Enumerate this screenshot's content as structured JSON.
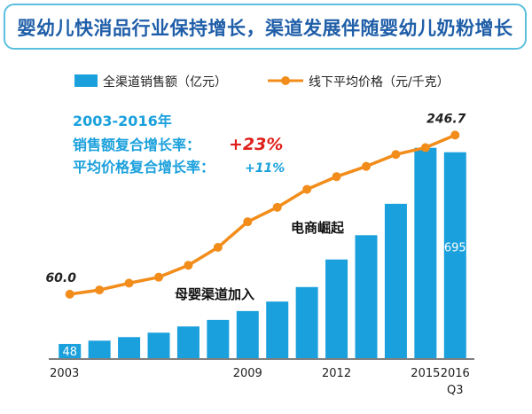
{
  "title": "婴幼儿快消品行业保持增长，渠道发展伴随婴幼儿奶粉增长",
  "chart_data": {
    "type": "bar+line",
    "categories": [
      "2003",
      "2004",
      "2005",
      "2006",
      "2007",
      "2008",
      "2009",
      "2010",
      "2011",
      "2012",
      "2013",
      "2014",
      "2015",
      "2016 Q3"
    ],
    "x_tick_labels": [
      {
        "index": 0,
        "text": "2003"
      },
      {
        "index": 6,
        "text": "2009"
      },
      {
        "index": 9,
        "text": "2012"
      },
      {
        "index": 12,
        "text": "2015"
      },
      {
        "index": 13,
        "text": "2016"
      },
      {
        "index": 13,
        "text": "Q3",
        "sub": true
      }
    ],
    "series": [
      {
        "name": "全渠道销售额（亿元）",
        "type": "bar",
        "color": "#1aa0dc",
        "values": [
          48,
          59,
          71,
          86,
          107,
          129,
          159,
          191,
          240,
          333,
          415,
          521,
          710,
          695
        ],
        "ylim": [
          0,
          760
        ],
        "data_labels": [
          {
            "index": 0,
            "text": "48"
          },
          {
            "index": 13,
            "text": "695"
          }
        ]
      },
      {
        "name": "线下平均价格（元/千克）",
        "type": "line",
        "color": "#f28c1a",
        "values": [
          60.0,
          65,
          73,
          80,
          94,
          115,
          145,
          162,
          183,
          198,
          210,
          224,
          232,
          246.7
        ],
        "ylim": [
          -15,
          270
        ],
        "data_labels": [
          {
            "index": 0,
            "text": "60.0"
          },
          {
            "index": 13,
            "text": "246.7"
          }
        ]
      }
    ],
    "legend": {
      "position": "top",
      "items": [
        {
          "label": "全渠道销售额（亿元）",
          "marker": "bar",
          "color": "#1aa0dc"
        },
        {
          "label": "线下平均价格（元/千克）",
          "marker": "line",
          "color": "#f28c1a"
        }
      ]
    },
    "summary": {
      "period": "2003-2016年",
      "line1_label": "销售额复合增长率：",
      "line1_value": "+23%",
      "line2_label": "平均价格复合增长率：",
      "line2_value": "+11%"
    },
    "annotations": [
      {
        "text": "母婴渠道加入",
        "near_index": 7
      },
      {
        "text": "电商崛起",
        "near_index": 9
      }
    ],
    "colors": {
      "label_blue": "#1aa0dc",
      "highlight_red": "#e0201a",
      "axis": "#555555"
    }
  }
}
